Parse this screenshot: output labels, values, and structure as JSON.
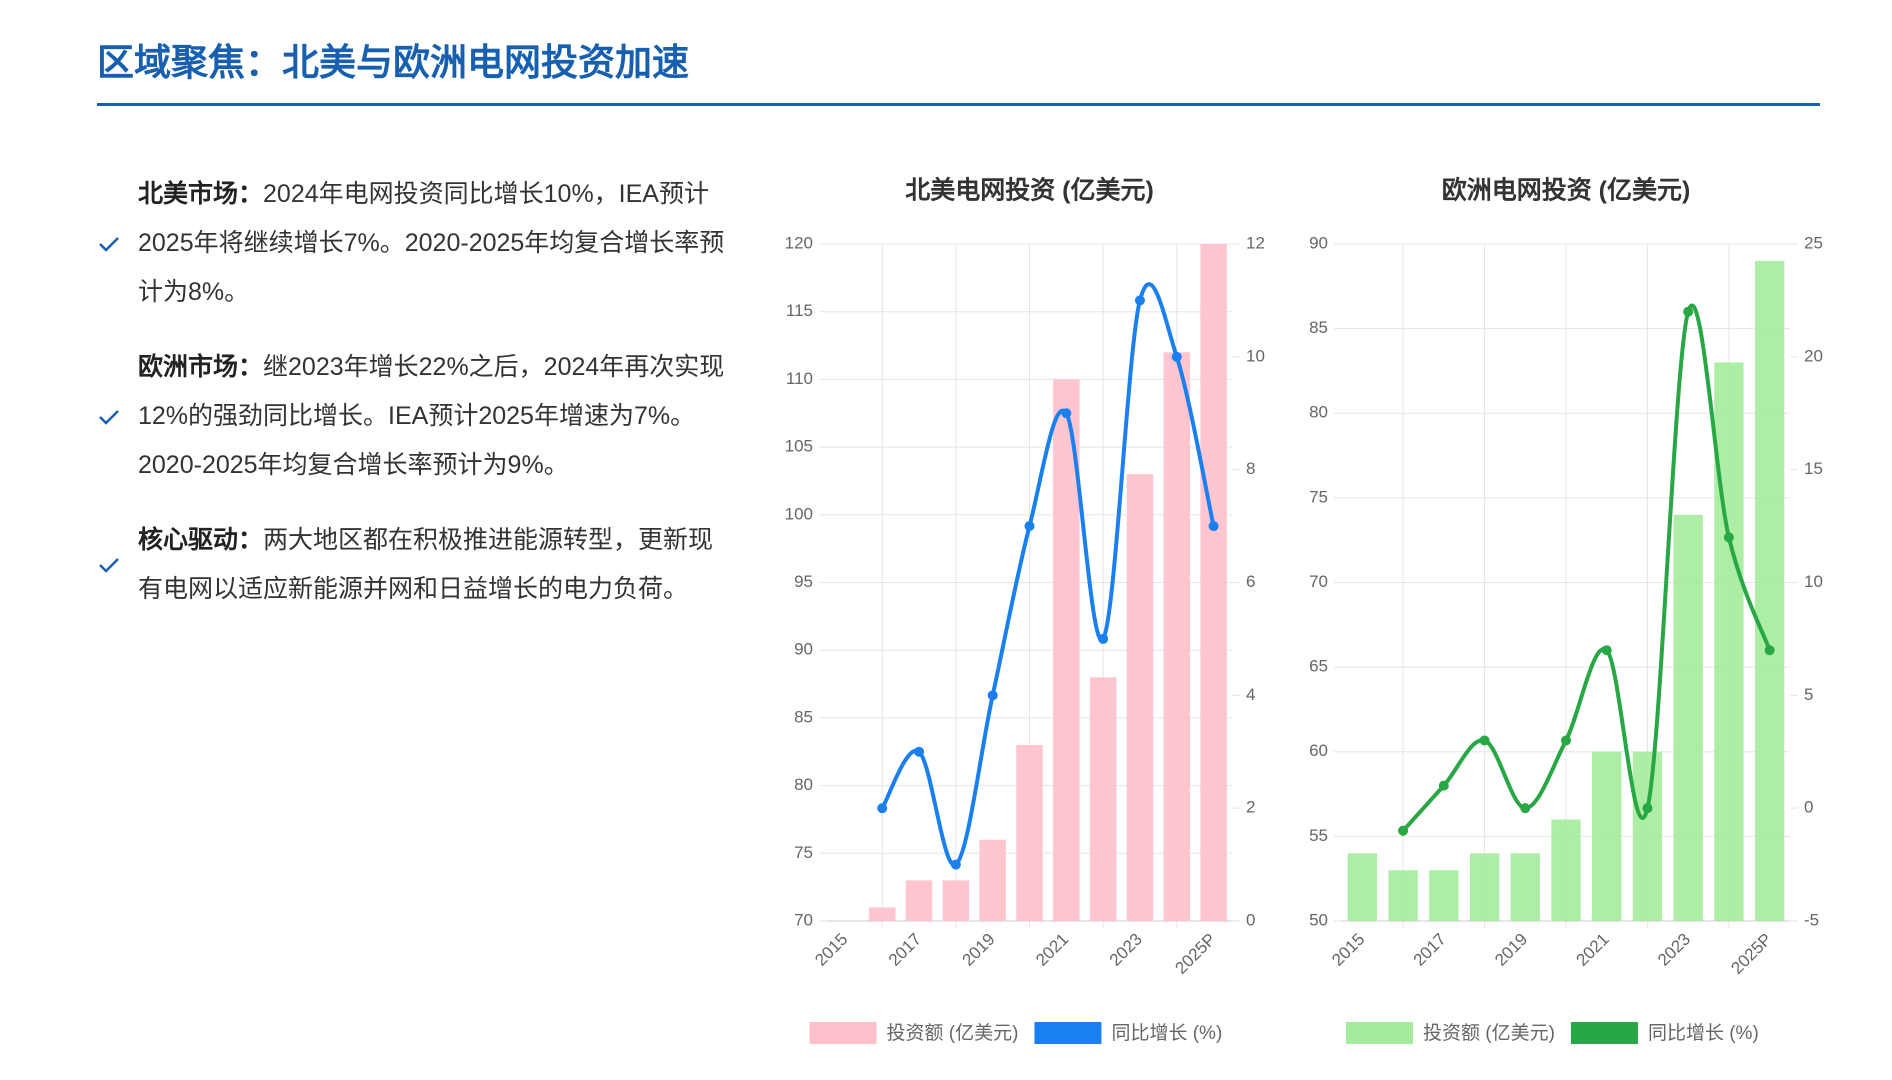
{
  "header": {
    "title": "区域聚焦：北美与欧洲电网投资加速"
  },
  "bullets": [
    {
      "label": "北美市场：",
      "text": "2024年电网投资同比增长10%，IEA预计2025年将继续增长7%。2020-2025年均复合增长率预计为8%。"
    },
    {
      "label": "欧洲市场：",
      "text": "继2023年增长22%之后，2024年再次实现12%的强劲同比增长。IEA预计2025年增速为7%。2020-2025年均复合增长率预计为9%。"
    },
    {
      "label": "核心驱动：",
      "text": "两大地区都在积极推进能源转型，更新现有电网以适应新能源并网和日益增长的电力负荷。"
    }
  ],
  "chart_data": [
    {
      "type": "combo",
      "title": "北美电网投资 (亿美元)",
      "categories": [
        "2015",
        null,
        "2017",
        null,
        "2019",
        null,
        "2021",
        null,
        "2023",
        null,
        "2025P"
      ],
      "series": [
        {
          "name": "投资额 (亿美元)",
          "type": "bar",
          "color": "#ffc0cb",
          "values": [
            70,
            71,
            73,
            73,
            76,
            83,
            110,
            88,
            103,
            112,
            120
          ]
        },
        {
          "name": "同比增长 (%)",
          "type": "line",
          "axis": "y2",
          "color": "#1a80f0",
          "values": [
            null,
            2,
            3,
            1,
            4,
            7,
            9,
            5,
            11,
            10,
            7
          ]
        }
      ],
      "ylim": [
        70,
        120
      ],
      "yticks": [
        70,
        75,
        80,
        85,
        90,
        95,
        100,
        105,
        110,
        115,
        120
      ],
      "y2lim": [
        0,
        12
      ],
      "y2ticks": [
        0,
        2,
        4,
        6,
        8,
        10,
        12
      ],
      "grid": true,
      "legend": "bottom"
    },
    {
      "type": "combo",
      "title": "欧洲电网投资 (亿美元)",
      "categories": [
        "2015",
        null,
        "2017",
        null,
        "2019",
        null,
        "2021",
        null,
        "2023",
        null,
        "2025P"
      ],
      "series": [
        {
          "name": "投资额 (亿美元)",
          "type": "bar",
          "color": "#a4eb9c",
          "values": [
            54,
            53,
            53,
            54,
            54,
            56,
            60,
            60,
            74,
            83,
            89
          ]
        },
        {
          "name": "同比增长 (%)",
          "type": "line",
          "axis": "y2",
          "color": "#28a745",
          "values": [
            null,
            -1,
            1,
            3,
            0,
            3,
            7,
            0,
            22,
            12,
            7
          ]
        }
      ],
      "ylim": [
        50,
        90
      ],
      "yticks": [
        50,
        55,
        60,
        65,
        70,
        75,
        80,
        85,
        90
      ],
      "y2lim": [
        -5,
        25
      ],
      "y2ticks": [
        -5,
        0,
        5,
        10,
        15,
        20,
        25
      ],
      "grid": true,
      "legend": "bottom"
    }
  ]
}
